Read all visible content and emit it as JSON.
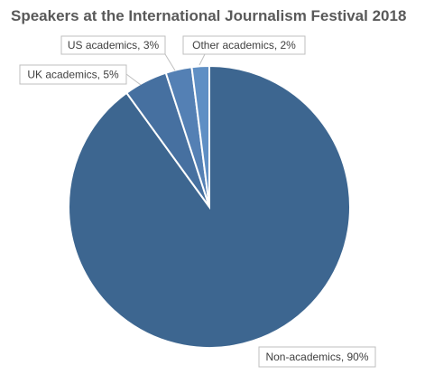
{
  "chart_data": {
    "type": "pie",
    "title": "Speakers at the International Journalism Festival 2018",
    "categories": [
      "Non-academics",
      "UK academics",
      "US academics",
      "Other academics"
    ],
    "values": [
      90,
      5,
      3,
      2
    ],
    "labels": [
      "Non-academics, 90%",
      "UK academics, 5%",
      "US academics, 3%",
      "Other academics, 2%"
    ],
    "colors": [
      "#3d6690",
      "#4670a0",
      "#5480b4",
      "#5f8fc4"
    ],
    "legend": "none"
  }
}
